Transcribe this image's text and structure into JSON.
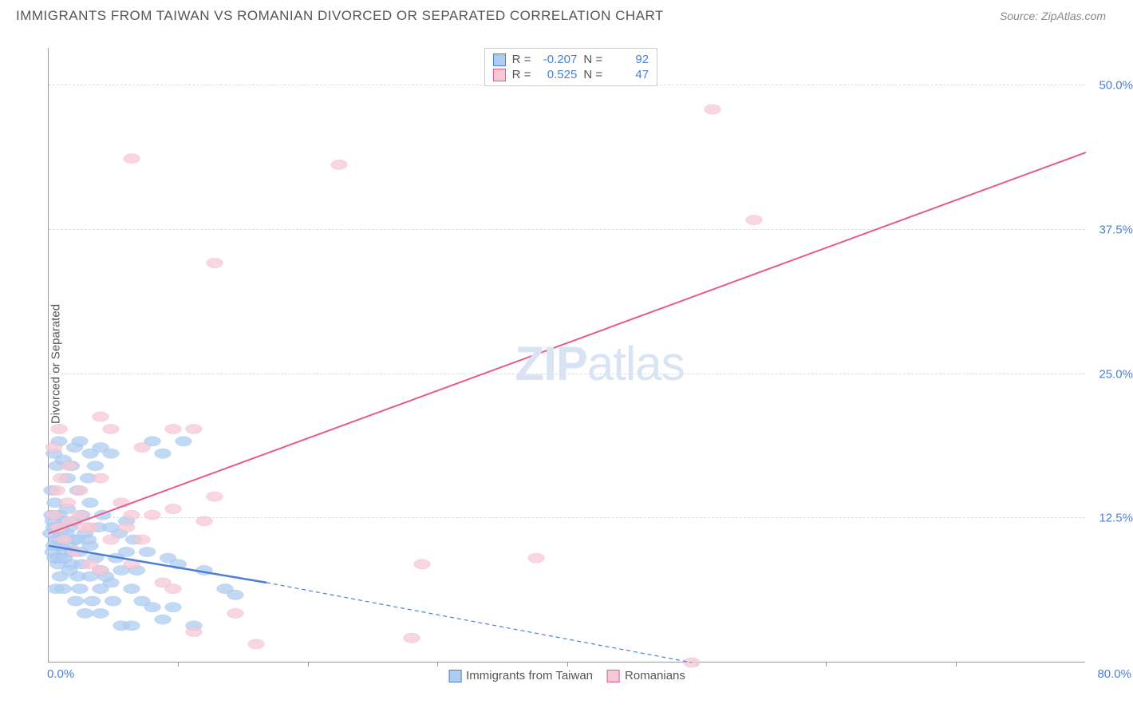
{
  "title": "IMMIGRANTS FROM TAIWAN VS ROMANIAN DIVORCED OR SEPARATED CORRELATION CHART",
  "source": "Source: ZipAtlas.com",
  "watermark": {
    "bold": "ZIP",
    "light": "atlas"
  },
  "chart": {
    "type": "scatter-with-regression",
    "y_axis_title": "Divorced or Separated",
    "x_origin": "0.0%",
    "x_max": "80.0%",
    "y_ticks": [
      {
        "value": "12.5%",
        "pos_pct": 76.5
      },
      {
        "value": "25.0%",
        "pos_pct": 53
      },
      {
        "value": "37.5%",
        "pos_pct": 29.5
      },
      {
        "value": "50.0%",
        "pos_pct": 6
      }
    ],
    "x_tick_positions_pct": [
      12.5,
      25,
      37.5,
      50,
      62.5,
      75,
      87.5
    ],
    "background_color": "#ffffff",
    "grid_color": "#dddddd",
    "axis_color": "#999999",
    "label_color": "#4a7fd4",
    "series": [
      {
        "name": "Immigrants from Taiwan",
        "fill": "#aeccf1",
        "stroke": "#4a7fd4",
        "r_label": "R =",
        "r_value": "-0.207",
        "n_label": "N =",
        "n_value": "92",
        "regression": {
          "x1": 0,
          "y1": 81,
          "x2": 21,
          "y2": 87,
          "dash_x1": 21,
          "dash_y1": 87,
          "dash_x2": 62,
          "dash_y2": 100
        },
        "points": [
          [
            0.5,
            78
          ],
          [
            1,
            76
          ],
          [
            1.5,
            77
          ],
          [
            2,
            78
          ],
          [
            0.8,
            80
          ],
          [
            1.2,
            79
          ],
          [
            0.3,
            72
          ],
          [
            0.6,
            74
          ],
          [
            1.8,
            75
          ],
          [
            2.5,
            80
          ],
          [
            3,
            82
          ],
          [
            3.5,
            79
          ],
          [
            4,
            81
          ],
          [
            2.2,
            84
          ],
          [
            0.4,
            82
          ],
          [
            0.9,
            84
          ],
          [
            1.6,
            82
          ],
          [
            2.8,
            86
          ],
          [
            1.1,
            86
          ],
          [
            0.7,
            88
          ],
          [
            1.4,
            88
          ],
          [
            2,
            85
          ],
          [
            3.2,
            84
          ],
          [
            5,
            85
          ],
          [
            6,
            87
          ],
          [
            4.5,
            83
          ],
          [
            0.5,
            81
          ],
          [
            1.7,
            79
          ],
          [
            2.4,
            77
          ],
          [
            3.8,
            80
          ],
          [
            7,
            85
          ],
          [
            8,
            88
          ],
          [
            9,
            90
          ],
          [
            6.5,
            83
          ],
          [
            5.5,
            86
          ],
          [
            10,
            91
          ],
          [
            11,
            93
          ],
          [
            12,
            91
          ],
          [
            14,
            94
          ],
          [
            8.5,
            85
          ],
          [
            7.5,
            82
          ],
          [
            4.8,
            78
          ],
          [
            3.5,
            92
          ],
          [
            4.2,
            90
          ],
          [
            5,
            92
          ],
          [
            6.2,
            90
          ],
          [
            7,
            94
          ],
          [
            8,
            94
          ],
          [
            2.5,
            65
          ],
          [
            3,
            64
          ],
          [
            4,
            66
          ],
          [
            1,
            64
          ],
          [
            5,
            65
          ],
          [
            6,
            66
          ],
          [
            4.5,
            68
          ],
          [
            3.8,
            70
          ],
          [
            2.8,
            72
          ],
          [
            10,
            64
          ],
          [
            11,
            66
          ],
          [
            13,
            64
          ],
          [
            3,
            88
          ],
          [
            4,
            86
          ],
          [
            5,
            88
          ],
          [
            2.6,
            90
          ],
          [
            1.8,
            70
          ],
          [
            2.2,
            68
          ],
          [
            0.8,
            68
          ],
          [
            1.4,
            67
          ],
          [
            0.5,
            66
          ],
          [
            0.3,
            76
          ],
          [
            17,
            88
          ],
          [
            18,
            89
          ],
          [
            15,
            85
          ],
          [
            9.5,
            82
          ],
          [
            11.5,
            83
          ],
          [
            12.5,
            84
          ],
          [
            8.2,
            80
          ],
          [
            6.8,
            79
          ],
          [
            0.2,
            79
          ],
          [
            0.4,
            77
          ],
          [
            0.6,
            83
          ],
          [
            1,
            83
          ],
          [
            1.2,
            81
          ],
          [
            1.5,
            83
          ],
          [
            2,
            81
          ],
          [
            2.3,
            82
          ],
          [
            2.7,
            80
          ],
          [
            3.2,
            76
          ],
          [
            4,
            74
          ],
          [
            5.2,
            76
          ],
          [
            6,
            78
          ],
          [
            7.5,
            77
          ]
        ]
      },
      {
        "name": "Romanians",
        "fill": "#f6c8d5",
        "stroke": "#e85a8a",
        "r_label": "R =",
        "r_value": "0.525",
        "n_label": "N =",
        "n_value": "47",
        "regression": {
          "x1": 0,
          "y1": 79,
          "x2": 100,
          "y2": 17
        },
        "points": [
          [
            0.5,
            76
          ],
          [
            1,
            78
          ],
          [
            2,
            77
          ],
          [
            3,
            76
          ],
          [
            4,
            78
          ],
          [
            1.5,
            80
          ],
          [
            2.5,
            82
          ],
          [
            0.8,
            72
          ],
          [
            1.2,
            70
          ],
          [
            2,
            68
          ],
          [
            3,
            72
          ],
          [
            5,
            70
          ],
          [
            7,
            74
          ],
          [
            8,
            76
          ],
          [
            10,
            76
          ],
          [
            12,
            75
          ],
          [
            16,
            73
          ],
          [
            9,
            65
          ],
          [
            12,
            62
          ],
          [
            14,
            62
          ],
          [
            15,
            77
          ],
          [
            18,
            92
          ],
          [
            20,
            97
          ],
          [
            36,
            84
          ],
          [
            47,
            83
          ],
          [
            8,
            18
          ],
          [
            28,
            19
          ],
          [
            16,
            35
          ],
          [
            64,
            10
          ],
          [
            68,
            28
          ],
          [
            5,
            60
          ],
          [
            6,
            62
          ],
          [
            4,
            84
          ],
          [
            5,
            85
          ],
          [
            8,
            84
          ],
          [
            11,
            87
          ],
          [
            12,
            88
          ],
          [
            1,
            62
          ],
          [
            0.5,
            65
          ],
          [
            14,
            95
          ],
          [
            35,
            96
          ],
          [
            62,
            100
          ],
          [
            1.8,
            74
          ],
          [
            3.5,
            78
          ],
          [
            6,
            80
          ],
          [
            7.5,
            78
          ],
          [
            9,
            80
          ]
        ]
      }
    ]
  }
}
